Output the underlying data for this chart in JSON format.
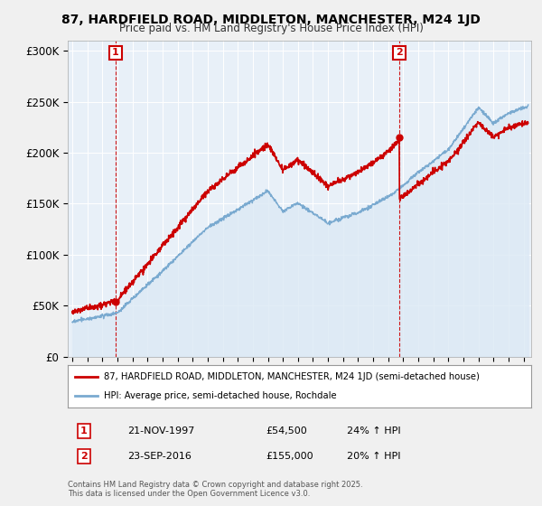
{
  "title_line1": "87, HARDFIELD ROAD, MIDDLETON, MANCHESTER, M24 1JD",
  "title_line2": "Price paid vs. HM Land Registry's House Price Index (HPI)",
  "ylim": [
    0,
    310000
  ],
  "yticks": [
    0,
    50000,
    100000,
    150000,
    200000,
    250000,
    300000
  ],
  "ytick_labels": [
    "£0",
    "£50K",
    "£100K",
    "£150K",
    "£200K",
    "£250K",
    "£300K"
  ],
  "sale1_year": 1997.88,
  "sale1_price": 54500,
  "sale2_year": 2016.73,
  "sale2_price": 155000,
  "legend_line1": "87, HARDFIELD ROAD, MIDDLETON, MANCHESTER, M24 1JD (semi-detached house)",
  "legend_line2": "HPI: Average price, semi-detached house, Rochdale",
  "footnote": "Contains HM Land Registry data © Crown copyright and database right 2025.\nThis data is licensed under the Open Government Licence v3.0.",
  "price_color": "#cc0000",
  "hpi_color": "#7aaad0",
  "hpi_fill_color": "#dce9f5",
  "background_color": "#f0f0f0",
  "plot_bg_color": "#e8f0f8",
  "grid_color": "#ffffff",
  "vline_color": "#cc0000",
  "box_color": "#cc0000",
  "sale1_ann_date": "21-NOV-1997",
  "sale1_ann_price": "£54,500",
  "sale1_ann_hpi": "24% ↑ HPI",
  "sale2_ann_date": "23-SEP-2016",
  "sale2_ann_price": "£155,000",
  "sale2_ann_hpi": "20% ↑ HPI"
}
